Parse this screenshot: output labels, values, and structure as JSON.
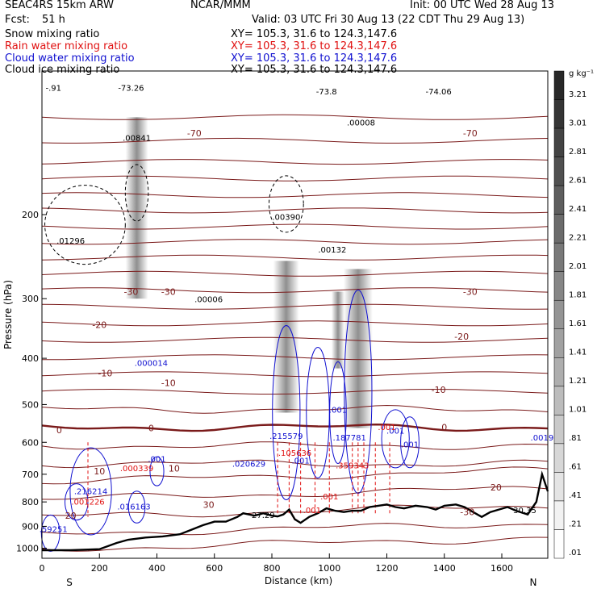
{
  "header": {
    "model": "SEAC4RS 15km ARW",
    "org": "NCAR/MMM",
    "init": "Init: 00 UTC Wed 28 Aug 13",
    "fcst_label": "Fcst:",
    "fcst_value": "51 h",
    "valid": "Valid: 03 UTC Fri 30 Aug 13 (22 CDT Thu 29 Aug 13)"
  },
  "legend": [
    {
      "label": "Snow mixing ratio",
      "xy": "XY= 105.3, 31.6 to 124.3,147.6",
      "color": "#000000"
    },
    {
      "label": "Rain water mixing ratio",
      "xy": "XY= 105.3, 31.6 to 124.3,147.6",
      "color": "#e01010"
    },
    {
      "label": "Cloud water mixing ratio",
      "xy": "XY= 105.3, 31.6 to 124.3,147.6",
      "color": "#1010d0"
    },
    {
      "label": "Cloud ice mixing ratio",
      "xy": "XY= 105.3, 31.6 to 124.3,147.6",
      "color": "#000000"
    }
  ],
  "colorbar": {
    "unit": "g kg⁻¹",
    "labels": [
      "3.21",
      "3.01",
      "2.81",
      "2.61",
      "2.41",
      "2.21",
      "2.01",
      "1.81",
      "1.61",
      "1.41",
      "1.21",
      "1.01",
      ".81",
      ".61",
      ".41",
      ".21",
      ".01"
    ]
  },
  "chart_data": {
    "type": "heatmap",
    "xlabel": "Distance (km)",
    "ylabel": "Pressure (hPa)",
    "x_ticks": [
      0,
      200,
      400,
      600,
      800,
      1000,
      1200,
      1400,
      1600
    ],
    "y_ticks": [
      200,
      300,
      400,
      500,
      600,
      700,
      800,
      900,
      1000
    ],
    "xlim": [
      0,
      1760
    ],
    "ylim_log_pressure": [
      1050,
      100
    ],
    "x_end_labels": {
      "left": "S",
      "right": "N"
    },
    "temperature_contours": [
      {
        "label": "-70",
        "x": 530,
        "p": 135
      },
      {
        "label": "-70",
        "x": 1490,
        "p": 135
      },
      {
        "label": "-30",
        "x": 310,
        "p": 290
      },
      {
        "label": "-30",
        "x": 440,
        "p": 290
      },
      {
        "label": "-30",
        "x": 1490,
        "p": 290
      },
      {
        "label": "-20",
        "x": 200,
        "p": 340
      },
      {
        "label": "-20",
        "x": 1460,
        "p": 360
      },
      {
        "label": "-10",
        "x": 220,
        "p": 430
      },
      {
        "label": "-10",
        "x": 440,
        "p": 450
      },
      {
        "label": "-10",
        "x": 1380,
        "p": 465
      },
      {
        "label": "0",
        "x": 60,
        "p": 565
      },
      {
        "label": "0",
        "x": 380,
        "p": 560
      },
      {
        "label": "0",
        "x": 1400,
        "p": 558
      },
      {
        "label": "10",
        "x": 200,
        "p": 690
      },
      {
        "label": "10",
        "x": 460,
        "p": 680
      },
      {
        "label": "20",
        "x": 100,
        "p": 855
      },
      {
        "label": "20",
        "x": 1580,
        "p": 745
      },
      {
        "label": "30",
        "x": 580,
        "p": 810
      },
      {
        "label": "-30",
        "x": 1480,
        "p": 840
      }
    ],
    "annotations": [
      {
        "text": "-73.26",
        "x": 310,
        "p": 110,
        "color": "#000000"
      },
      {
        "text": "-73.8",
        "x": 990,
        "p": 112,
        "color": "#000000"
      },
      {
        "text": "-74.06",
        "x": 1380,
        "p": 112,
        "color": "#000000"
      },
      {
        "text": ".00841",
        "x": 330,
        "p": 140,
        "color": "#000000"
      },
      {
        "text": ".01296",
        "x": 100,
        "p": 230,
        "color": "#000000"
      },
      {
        "text": ".00390",
        "x": 850,
        "p": 205,
        "color": "#000000"
      },
      {
        "text": ".00132",
        "x": 1010,
        "p": 240,
        "color": "#000000"
      },
      {
        "text": ".00008",
        "x": 1110,
        "p": 130,
        "color": "#000000"
      },
      {
        "text": ".00006",
        "x": 580,
        "p": 305,
        "color": "#000000"
      },
      {
        "text": ".000014",
        "x": 380,
        "p": 415,
        "color": "#1010d0"
      },
      {
        "text": ".215579",
        "x": 850,
        "p": 590,
        "color": "#1010d0"
      },
      {
        "text": ".187781",
        "x": 1070,
        "p": 595,
        "color": "#1010d0"
      },
      {
        "text": ".001",
        "x": 1030,
        "p": 520,
        "color": "#1010d0"
      },
      {
        "text": ".001",
        "x": 1230,
        "p": 575,
        "color": "#1010d0"
      },
      {
        "text": ".001",
        "x": 1280,
        "p": 615,
        "color": "#1010d0"
      },
      {
        "text": ".0019",
        "x": 1740,
        "p": 595,
        "color": "#1010d0"
      },
      {
        "text": ".001",
        "x": 400,
        "p": 660,
        "color": "#1010d0"
      },
      {
        "text": ".001",
        "x": 900,
        "p": 665,
        "color": "#1010d0"
      },
      {
        "text": ".020629",
        "x": 720,
        "p": 675,
        "color": "#1010d0"
      },
      {
        "text": ".216214",
        "x": 170,
        "p": 770,
        "color": "#1010d0"
      },
      {
        "text": ".016163",
        "x": 320,
        "p": 830,
        "color": "#1010d0"
      },
      {
        "text": ".59251",
        "x": 40,
        "p": 925,
        "color": "#1010d0"
      },
      {
        "text": ".105636",
        "x": 880,
        "p": 640,
        "color": "#e01010"
      },
      {
        "text": ".359343",
        "x": 1080,
        "p": 680,
        "color": "#e01010"
      },
      {
        "text": ".000339",
        "x": 330,
        "p": 690,
        "color": "#e01010"
      },
      {
        "text": ".001226",
        "x": 160,
        "p": 810,
        "color": "#e01010"
      },
      {
        "text": ".001",
        "x": 1000,
        "p": 790,
        "color": "#e01010"
      },
      {
        "text": ".001",
        "x": 940,
        "p": 845,
        "color": "#e01010"
      },
      {
        "text": ".001",
        "x": 1200,
        "p": 565,
        "color": "#e01010"
      },
      {
        "text": "27.29",
        "x": 770,
        "p": 865,
        "color": "#000000"
      },
      {
        "text": "30.35",
        "x": 1680,
        "p": 845,
        "color": "#000000"
      },
      {
        "text": "-.91",
        "x": 40,
        "p": 110,
        "color": "#000000"
      }
    ],
    "terrain": [
      [
        0,
        1010
      ],
      [
        100,
        1010
      ],
      [
        200,
        1005
      ],
      [
        260,
        975
      ],
      [
        300,
        960
      ],
      [
        360,
        950
      ],
      [
        420,
        945
      ],
      [
        480,
        935
      ],
      [
        520,
        915
      ],
      [
        560,
        895
      ],
      [
        600,
        880
      ],
      [
        640,
        880
      ],
      [
        680,
        860
      ],
      [
        700,
        845
      ],
      [
        740,
        855
      ],
      [
        770,
        845
      ],
      [
        800,
        855
      ],
      [
        820,
        858
      ],
      [
        840,
        850
      ],
      [
        860,
        830
      ],
      [
        880,
        870
      ],
      [
        900,
        885
      ],
      [
        930,
        860
      ],
      [
        960,
        845
      ],
      [
        990,
        825
      ],
      [
        1020,
        835
      ],
      [
        1050,
        840
      ],
      [
        1080,
        835
      ],
      [
        1110,
        835
      ],
      [
        1140,
        820
      ],
      [
        1170,
        815
      ],
      [
        1200,
        810
      ],
      [
        1230,
        820
      ],
      [
        1260,
        825
      ],
      [
        1300,
        815
      ],
      [
        1340,
        820
      ],
      [
        1370,
        830
      ],
      [
        1400,
        815
      ],
      [
        1440,
        810
      ],
      [
        1470,
        820
      ],
      [
        1500,
        840
      ],
      [
        1530,
        860
      ],
      [
        1560,
        840
      ],
      [
        1590,
        830
      ],
      [
        1620,
        820
      ],
      [
        1650,
        835
      ],
      [
        1690,
        850
      ],
      [
        1720,
        800
      ],
      [
        1740,
        700
      ],
      [
        1760,
        760
      ]
    ]
  }
}
